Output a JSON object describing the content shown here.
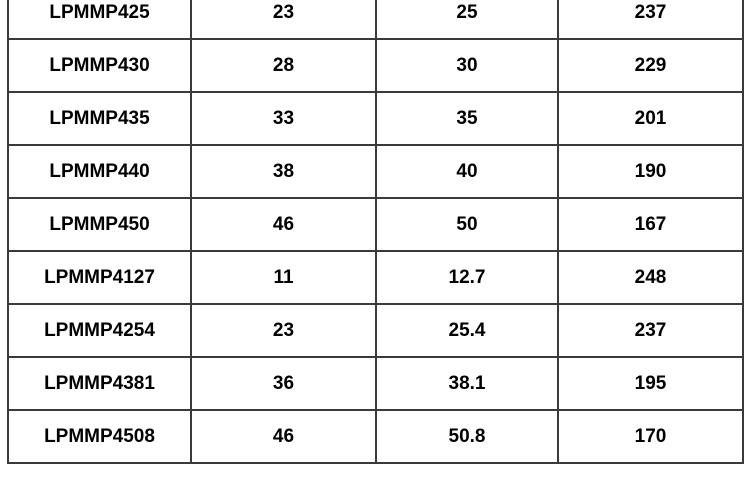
{
  "table": {
    "rows": [
      [
        "LPMMP425",
        "23",
        "25",
        "237"
      ],
      [
        "LPMMP430",
        "28",
        "30",
        "229"
      ],
      [
        "LPMMP435",
        "33",
        "35",
        "201"
      ],
      [
        "LPMMP440",
        "38",
        "40",
        "190"
      ],
      [
        "LPMMP450",
        "46",
        "50",
        "167"
      ],
      [
        "LPMMP4127",
        "11",
        "12.7",
        "248"
      ],
      [
        "LPMMP4254",
        "23",
        "25.4",
        "237"
      ],
      [
        "LPMMP4381",
        "36",
        "38.1",
        "195"
      ],
      [
        "LPMMP4508",
        "46",
        "50.8",
        "170"
      ]
    ]
  }
}
